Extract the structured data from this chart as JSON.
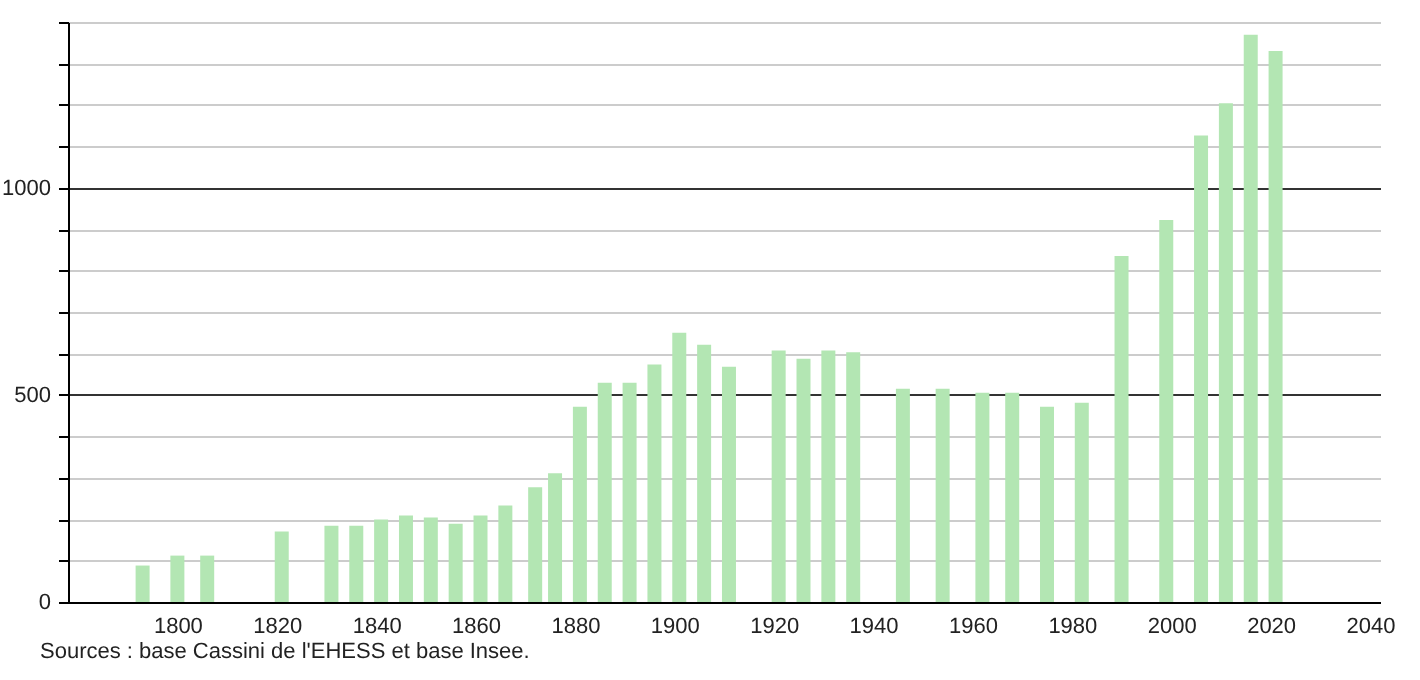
{
  "chart_data": {
    "type": "bar",
    "x": [
      1793,
      1800,
      1806,
      1821,
      1831,
      1836,
      1841,
      1846,
      1851,
      1856,
      1861,
      1866,
      1872,
      1876,
      1881,
      1886,
      1891,
      1896,
      1901,
      1906,
      1911,
      1921,
      1926,
      1931,
      1936,
      1946,
      1954,
      1962,
      1968,
      1975,
      1982,
      1990,
      1999,
      2006,
      2011,
      2016,
      2021
    ],
    "values": [
      88,
      112,
      112,
      170,
      184,
      184,
      199,
      209,
      204,
      189,
      209,
      233,
      277,
      311,
      471,
      529,
      529,
      573,
      650,
      621,
      568,
      607,
      587,
      607,
      603,
      515,
      515,
      505,
      505,
      471,
      481,
      835,
      922,
      1126,
      1204,
      1369,
      1330
    ],
    "color": "#b3e6b3",
    "xlim": [
      1780,
      2040
    ],
    "xticks": [
      1800,
      1820,
      1840,
      1860,
      1880,
      1900,
      1920,
      1940,
      1960,
      1980,
      2000,
      2020,
      2040
    ],
    "ylim": [
      0,
      1400
    ],
    "yticks": [
      0,
      {
        "value": 100,
        "label": null
      },
      {
        "value": 200,
        "label": null
      },
      {
        "value": 300,
        "label": null
      },
      {
        "value": 400,
        "label": null
      },
      500,
      {
        "value": 600,
        "label": null
      },
      {
        "value": 700,
        "label": null
      },
      {
        "value": 800,
        "label": null
      },
      {
        "value": 900,
        "label": null
      },
      1000,
      {
        "value": 1100,
        "label": null
      },
      {
        "value": 1200,
        "label": null
      },
      {
        "value": 1300,
        "label": null
      },
      {
        "value": 1400,
        "label": null
      }
    ],
    "grid": "y",
    "annotations": [
      "Sources : base Cassini de l'EHESS et base Insee."
    ]
  }
}
